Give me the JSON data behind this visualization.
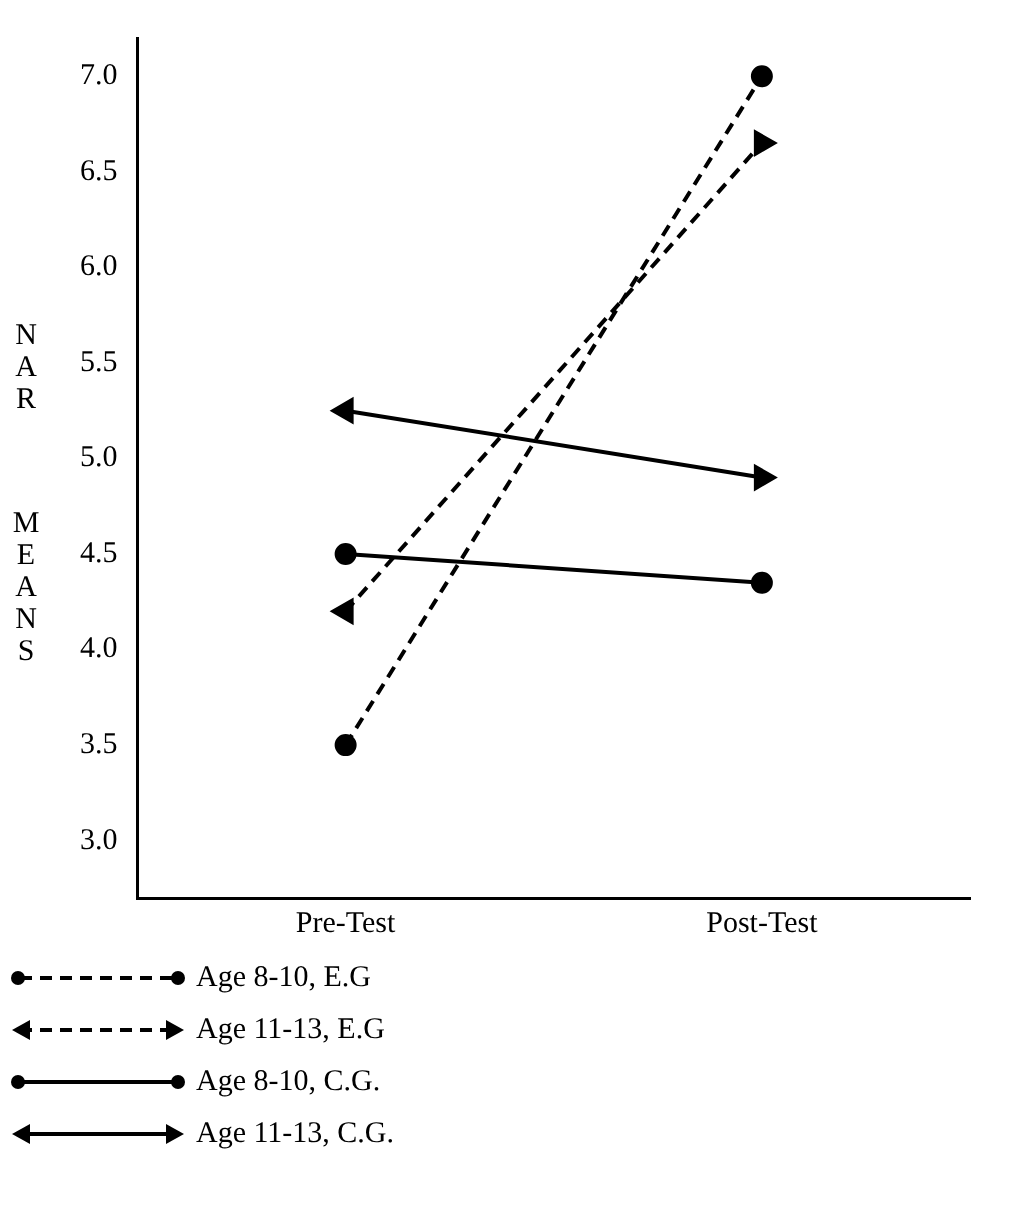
{
  "chart_data": {
    "type": "line",
    "ylabel": "NAR MEANS",
    "categories": [
      "Pre-Test",
      "Post-Test"
    ],
    "ylim": [
      2.7,
      7.2
    ],
    "yticks": [
      {
        "value": 3,
        "label": "3.0"
      },
      {
        "value": 3.5,
        "label": "3.5"
      },
      {
        "value": 4,
        "label": "4.0"
      },
      {
        "value": 4.5,
        "label": "4.5"
      },
      {
        "value": 5,
        "label": "5.0"
      },
      {
        "value": 5.5,
        "label": "5.5"
      },
      {
        "value": 6,
        "label": "6.0"
      },
      {
        "value": 6.5,
        "label": "6.5"
      },
      {
        "value": 7,
        "label": "7.0"
      }
    ],
    "grid": false,
    "legend": "bottom left",
    "series": [
      {
        "name": "Age 8-10, E.G",
        "color": "#000000",
        "values": [
          3.5,
          7.0
        ],
        "line_style": "dashed",
        "marker": "circle"
      },
      {
        "name": "Age 11-13, E.G",
        "color": "#000000",
        "values": [
          4.2,
          6.65
        ],
        "line_style": "dashed",
        "marker": "triangle"
      },
      {
        "name": "Age 8-10, C.G.",
        "color": "#000000",
        "values": [
          4.5,
          4.35
        ],
        "line_style": "solid",
        "marker": "circle"
      },
      {
        "name": "Age 11-13, C.G.",
        "color": "#000000",
        "values": [
          5.25,
          4.9
        ],
        "line_style": "solid",
        "marker": "triangle"
      }
    ]
  }
}
